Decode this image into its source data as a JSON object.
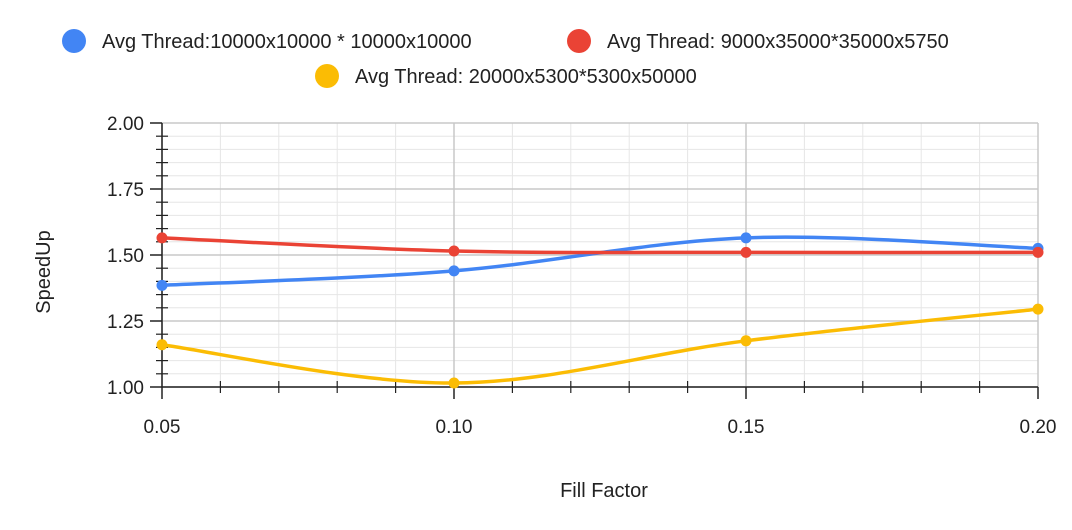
{
  "chart_data": {
    "type": "line",
    "xlabel": "Fill Factor",
    "ylabel": "SpeedUp",
    "x": [
      0.05,
      0.1,
      0.15,
      0.2
    ],
    "xticks": [
      "0.05",
      "0.10",
      "0.15",
      "0.20"
    ],
    "yticks": [
      "1.00",
      "1.25",
      "1.50",
      "1.75",
      "2.00"
    ],
    "xlim": [
      0.05,
      0.2
    ],
    "ylim": [
      1.0,
      2.0
    ],
    "grid": true,
    "legend_position": "top",
    "series": [
      {
        "name": "Avg Thread:10000x10000 * 10000x10000",
        "color": "#4285F4",
        "values": [
          1.385,
          1.44,
          1.565,
          1.525
        ]
      },
      {
        "name": "Avg Thread: 9000x35000*35000x5750",
        "color": "#EA4335",
        "values": [
          1.565,
          1.515,
          1.51,
          1.51
        ]
      },
      {
        "name": "Avg Thread: 20000x5300*5300x50000",
        "color": "#FBBC04",
        "values": [
          1.16,
          1.015,
          1.175,
          1.295
        ]
      }
    ]
  }
}
